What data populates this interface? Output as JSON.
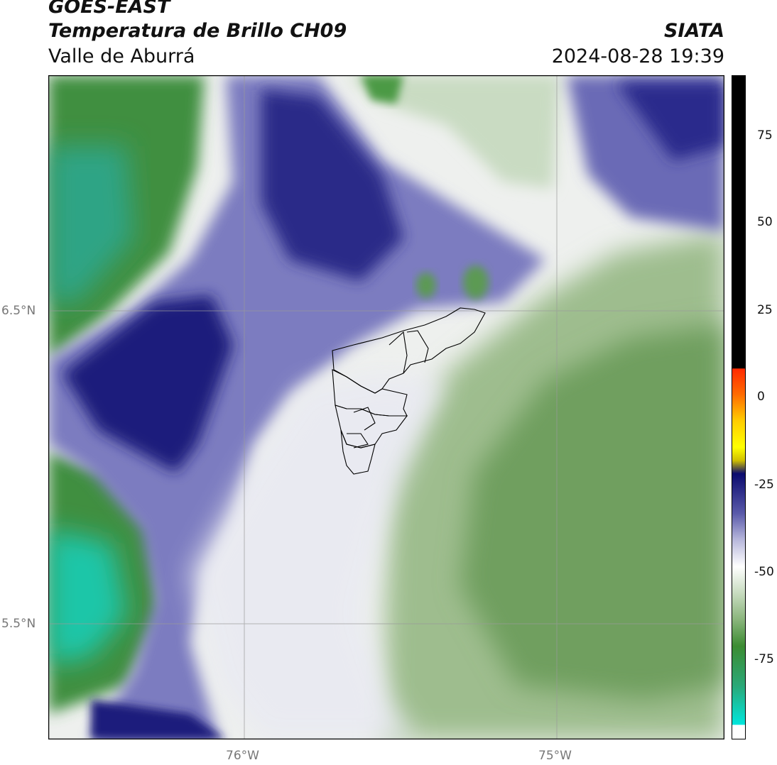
{
  "header": {
    "satellite": "GOES-EAST",
    "product": "Temperatura de Brillo CH09",
    "region": "Valle de Aburrá",
    "organization": "SIATA",
    "datetime": "2024-08-28 19:39"
  },
  "map": {
    "lat_labels": [
      "6.5°N",
      "5.5°N"
    ],
    "lon_labels": [
      "76°W",
      "75°W"
    ]
  },
  "colorbar": {
    "ticks": [
      "75",
      "50",
      "25",
      "0",
      "-25",
      "-50",
      "-75"
    ],
    "colors": {
      "black": "#000000",
      "red": "#ff2a00",
      "orange": "#ff8a00",
      "yellow": "#ffff00",
      "navy": "#0a0a6e",
      "lavender": "#b8b8dc",
      "white": "#ffffff",
      "lightgreen": "#c8dcc0",
      "green": "#3c8c32",
      "teal": "#1ec8aa",
      "cyan": "#00e6dc"
    }
  }
}
